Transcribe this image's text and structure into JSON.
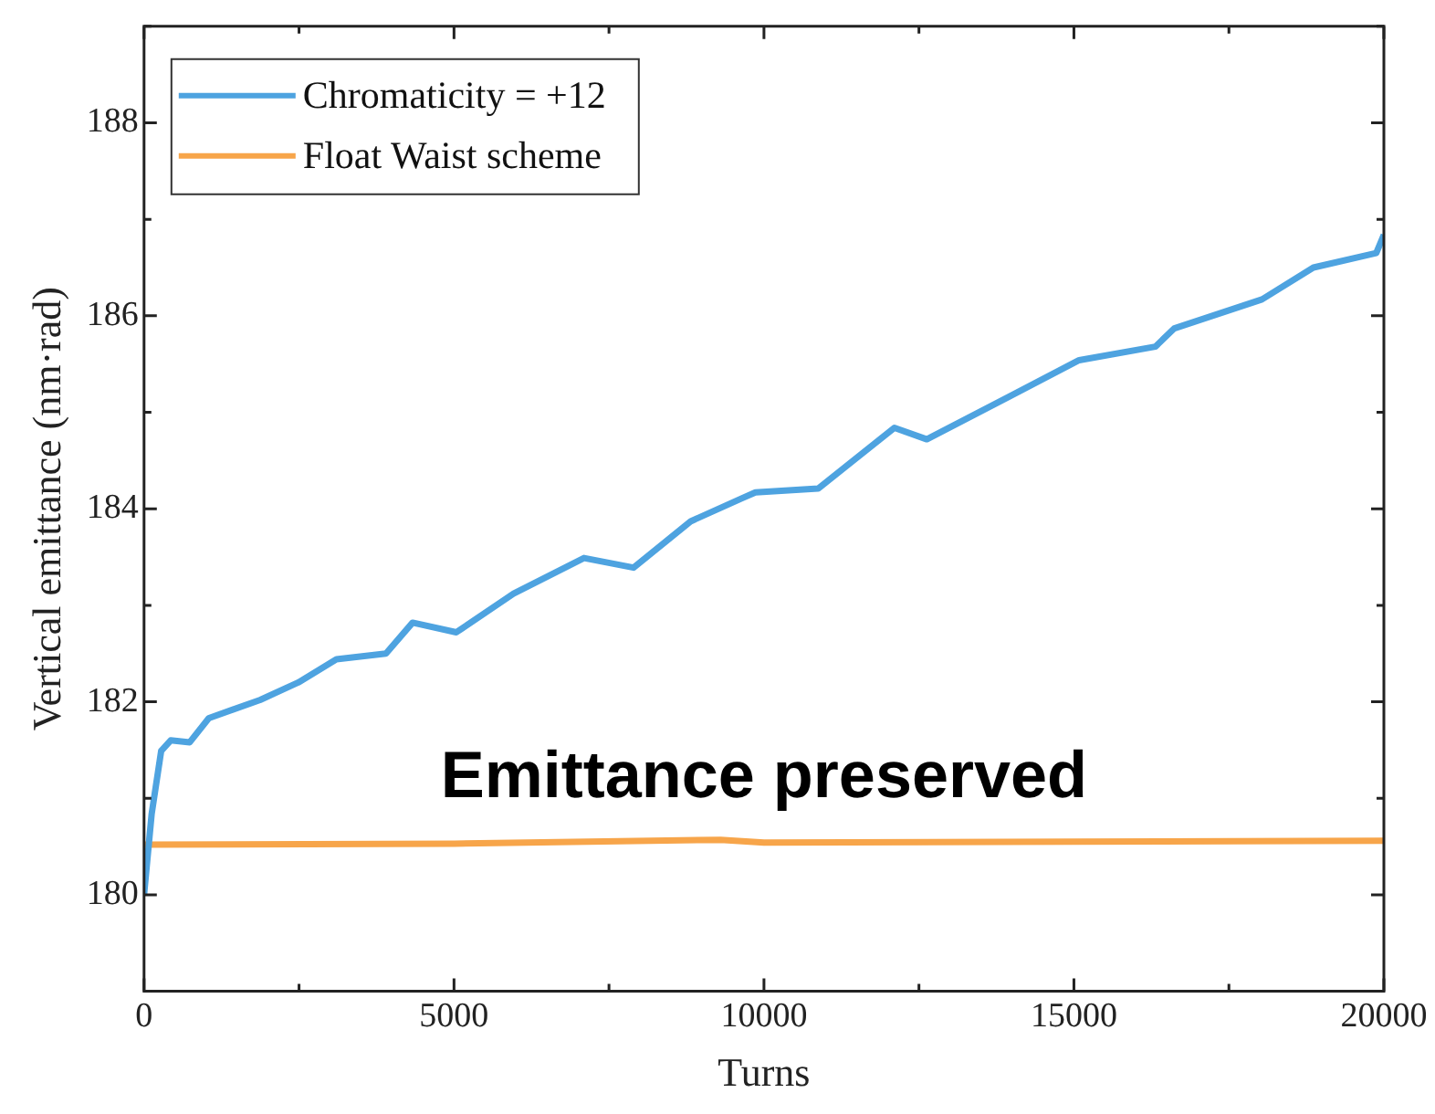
{
  "chart_data": {
    "type": "line",
    "xlabel": "Turns",
    "ylabel": "Vertical emittance (nm·rad)",
    "xlim": [
      0,
      20000
    ],
    "ylim": [
      179,
      189
    ],
    "xticks": [
      0,
      {
        "value": 2500,
        "label": null
      },
      5000,
      {
        "value": 7500,
        "label": null
      },
      10000,
      {
        "value": 12500,
        "label": null
      },
      15000,
      {
        "value": 17500,
        "label": null
      },
      20000
    ],
    "yticks": [
      {
        "value": 179,
        "label": null
      },
      180,
      {
        "value": 181,
        "label": null
      },
      182,
      {
        "value": 183,
        "label": null
      },
      184,
      {
        "value": 185,
        "label": null
      },
      186,
      {
        "value": 187,
        "label": null
      },
      188,
      {
        "value": 189,
        "label": null
      }
    ],
    "grid": false,
    "legend": "top left",
    "marker": "none",
    "line_style": "solid",
    "annotations": [
      "Emittance preserved"
    ],
    "series": [
      {
        "name": "Chromaticity = +12",
        "color": "#4ea3e0",
        "x": [
          0,
          123,
          276,
          430,
          737,
          1045,
          1874,
          2488,
          3103,
          3902,
          4332,
          5038,
          5960,
          7097,
          7895,
          8817,
          9647,
          9862,
          10876,
          12104,
          12627,
          13948,
          15084,
          16313,
          16621,
          18034,
          18863,
          19877,
          20000
        ],
        "values": [
          180.0,
          180.84,
          181.49,
          181.6,
          181.58,
          181.83,
          182.02,
          182.2,
          182.44,
          182.5,
          182.82,
          182.72,
          183.12,
          183.49,
          183.39,
          183.87,
          184.11,
          184.17,
          184.21,
          184.84,
          184.72,
          185.16,
          185.54,
          185.68,
          185.87,
          186.17,
          186.5,
          186.65,
          186.84
        ]
      },
      {
        "name": "Float Waist scheme",
        "color": "#f7a54a",
        "x": [
          0,
          5000,
          9300,
          10000,
          15000,
          20000
        ],
        "values": [
          180.52,
          180.53,
          180.57,
          180.54,
          180.55,
          180.56
        ]
      }
    ]
  }
}
